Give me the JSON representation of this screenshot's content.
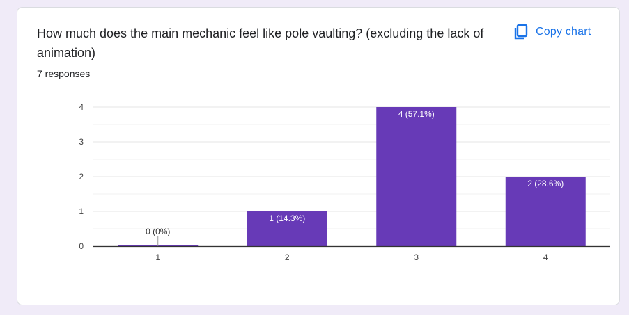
{
  "card": {
    "question": "How much does the main mechanic feel like pole vaulting? (excluding the lack of animation)",
    "responses": "7 responses",
    "copy_label": "Copy chart",
    "copy_icon": "copy-icon"
  },
  "colors": {
    "bar": "#673ab7",
    "accent": "#1a73e8",
    "background": "#f0ebf8"
  },
  "chart_data": {
    "type": "bar",
    "categories": [
      "1",
      "2",
      "3",
      "4"
    ],
    "values": [
      0,
      1,
      4,
      2
    ],
    "data_labels": [
      "0 (0%)",
      "1 (14.3%)",
      "4 (57.1%)",
      "2 (28.6%)"
    ],
    "ylim": [
      0,
      4
    ],
    "yticks": [
      "0",
      "1",
      "2",
      "3",
      "4"
    ],
    "grid": true,
    "title": "",
    "xlabel": "",
    "ylabel": ""
  }
}
